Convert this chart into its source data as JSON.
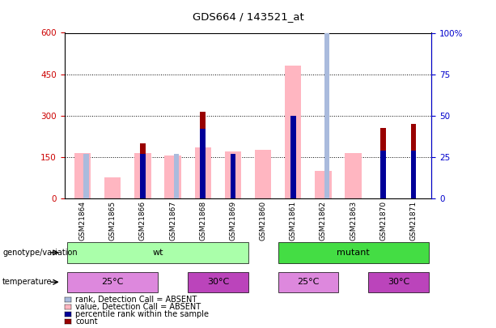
{
  "title": "GDS664 / 143521_at",
  "samples": [
    "GSM21864",
    "GSM21865",
    "GSM21866",
    "GSM21867",
    "GSM21868",
    "GSM21869",
    "GSM21860",
    "GSM21861",
    "GSM21862",
    "GSM21863",
    "GSM21870",
    "GSM21871"
  ],
  "count": [
    0,
    0,
    200,
    0,
    315,
    0,
    0,
    0,
    0,
    0,
    255,
    270
  ],
  "percentile_rank": [
    0,
    0,
    27,
    0,
    42,
    27,
    0,
    50,
    0,
    0,
    29,
    29
  ],
  "value_absent": [
    165,
    75,
    165,
    155,
    185,
    170,
    175,
    480,
    100,
    165,
    0,
    0
  ],
  "rank_absent": [
    27,
    0,
    0,
    27,
    0,
    0,
    0,
    0,
    110,
    0,
    0,
    0
  ],
  "bar_color_count": "#990000",
  "bar_color_percentile": "#000099",
  "bar_color_value_absent": "#FFB6C1",
  "bar_color_rank_absent": "#AABBDD",
  "ylim_left": [
    0,
    600
  ],
  "ylim_right": [
    0,
    100
  ],
  "yticks_left": [
    0,
    150,
    300,
    450,
    600
  ],
  "yticks_right": [
    0,
    25,
    50,
    75,
    100
  ],
  "ytick_right_labels": [
    "0",
    "25",
    "50",
    "75",
    "100%"
  ],
  "grid_lines": [
    150,
    300,
    450
  ],
  "wt_color": "#AAFFAA",
  "mutant_color": "#44DD44",
  "temp_25_color": "#DD88DD",
  "temp_30_color": "#BB44BB",
  "left_axis_color": "#CC0000",
  "right_axis_color": "#0000CC"
}
